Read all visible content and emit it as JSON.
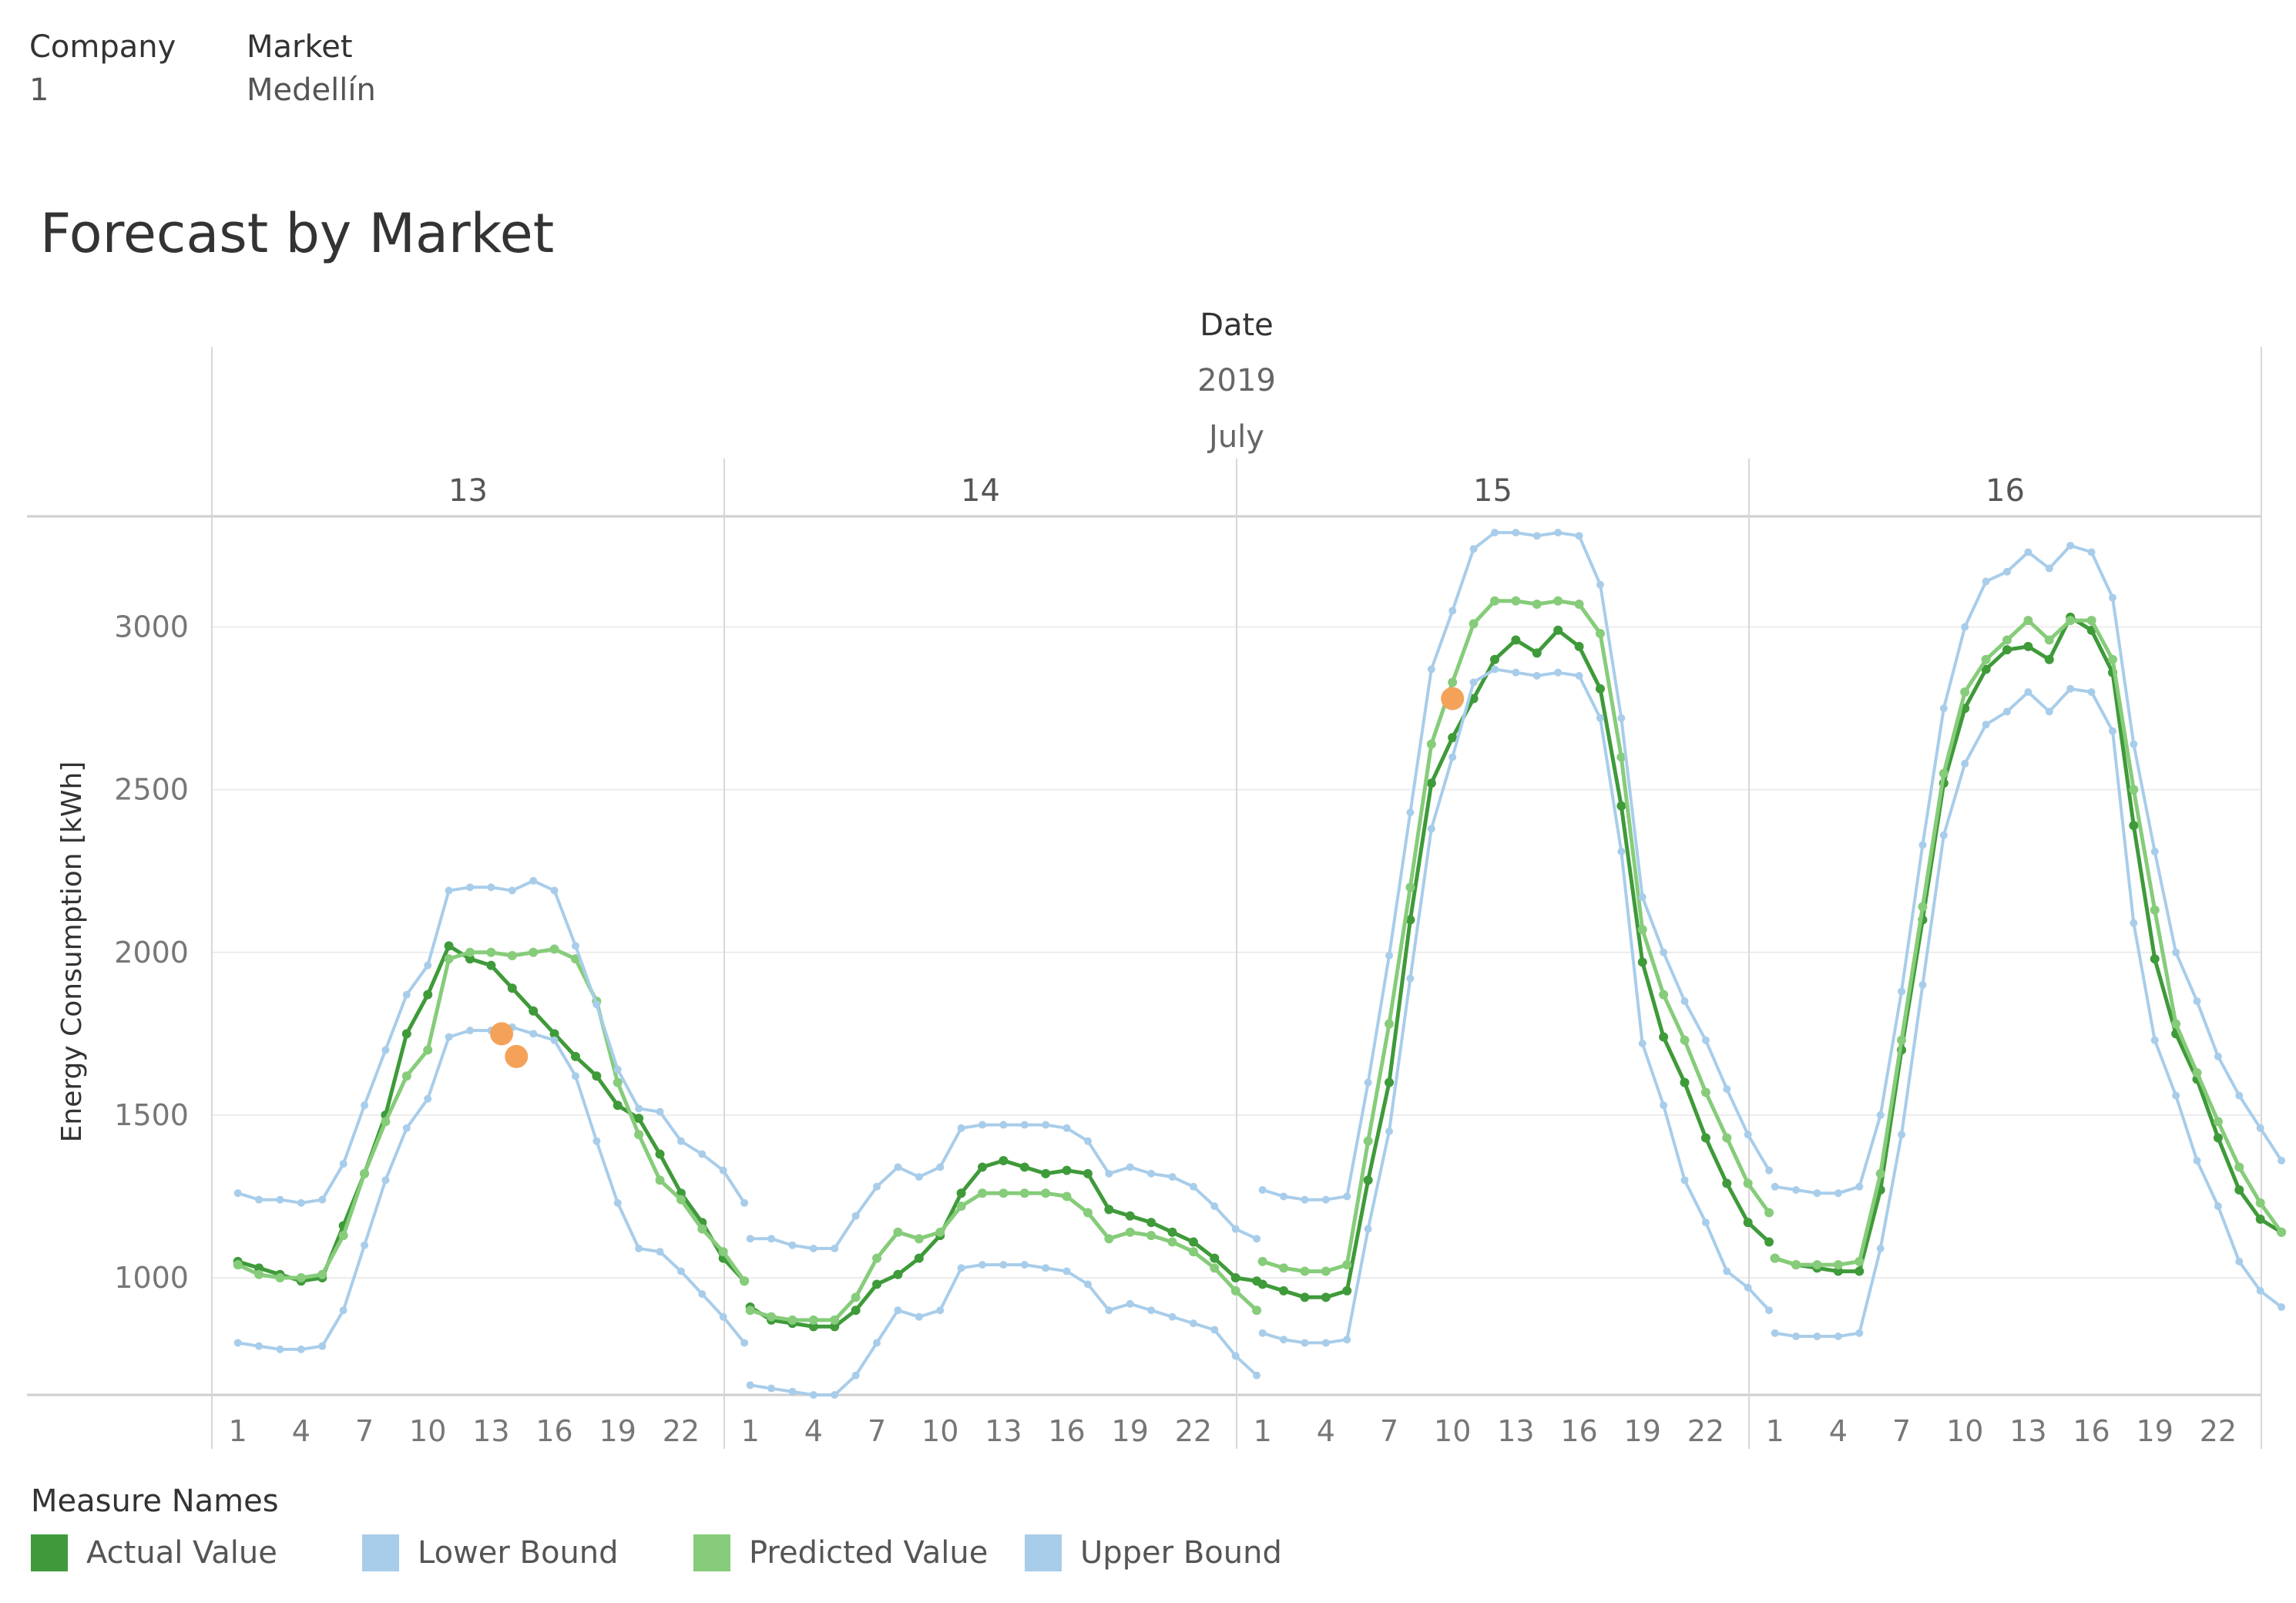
{
  "filters": [
    {
      "label": "Company",
      "value": "1"
    },
    {
      "label": "Market",
      "value": "Medellín"
    }
  ],
  "chart_title": "Forecast by Market",
  "header": {
    "title": "Date",
    "year": "2019",
    "month": "July"
  },
  "legend": {
    "title": "Measure Names",
    "items": [
      {
        "label": "Actual Value",
        "color": "#3f9a3a"
      },
      {
        "label": "Lower Bound",
        "color": "#a8cdea"
      },
      {
        "label": "Predicted Value",
        "color": "#86cc7a"
      },
      {
        "label": "Upper Bound",
        "color": "#a8cdea"
      }
    ]
  },
  "chart_data": {
    "type": "line",
    "title": "Forecast by Market",
    "ylabel": "Energy Consumption [kWh]",
    "xlabel": "",
    "ylim": [
      640,
      3340
    ],
    "yticks": [
      1000,
      1500,
      2000,
      2500,
      3000
    ],
    "xtick_labels": [
      "1",
      "4",
      "7",
      "10",
      "13",
      "16",
      "19",
      "22"
    ],
    "xtick_hours": [
      1,
      4,
      7,
      10,
      13,
      16,
      19,
      22
    ],
    "grid": true,
    "legend_position": "bottom",
    "panels": [
      {
        "day": "13",
        "series": [
          {
            "name": "Actual Value",
            "color": "#3f9a3a",
            "values": [
              1050,
              1030,
              1010,
              990,
              1000,
              1160,
              1320,
              1500,
              1750,
              1870,
              2020,
              1980,
              1960,
              1890,
              1820,
              1750,
              1680,
              1620,
              1530,
              1490,
              1380,
              1260,
              1170,
              1060,
              990
            ]
          },
          {
            "name": "Lower Bound",
            "color": "#a8cdea",
            "values": [
              800,
              790,
              780,
              780,
              790,
              900,
              1100,
              1300,
              1460,
              1550,
              1740,
              1760,
              1760,
              1770,
              1750,
              1730,
              1620,
              1420,
              1230,
              1090,
              1080,
              1020,
              950,
              880,
              800
            ]
          },
          {
            "name": "Predicted Value",
            "color": "#86cc7a",
            "values": [
              1040,
              1010,
              1000,
              1000,
              1010,
              1130,
              1320,
              1480,
              1620,
              1700,
              1980,
              2000,
              2000,
              1990,
              2000,
              2010,
              1980,
              1850,
              1600,
              1440,
              1300,
              1240,
              1150,
              1080,
              990
            ]
          },
          {
            "name": "Upper Bound",
            "color": "#a8cdea",
            "values": [
              1260,
              1240,
              1240,
              1230,
              1240,
              1350,
              1530,
              1700,
              1870,
              1960,
              2190,
              2200,
              2200,
              2190,
              2220,
              2190,
              2020,
              1840,
              1640,
              1520,
              1510,
              1420,
              1380,
              1330,
              1230
            ]
          }
        ],
        "anomalies": [
          {
            "hour": 13.5,
            "value": 1750
          },
          {
            "hour": 14.2,
            "value": 1680
          }
        ]
      },
      {
        "day": "14",
        "series": [
          {
            "name": "Actual Value",
            "color": "#3f9a3a",
            "values": [
              910,
              870,
              860,
              850,
              850,
              900,
              980,
              1010,
              1060,
              1130,
              1260,
              1340,
              1360,
              1340,
              1320,
              1330,
              1320,
              1210,
              1190,
              1170,
              1140,
              1110,
              1060,
              1000,
              990
            ]
          },
          {
            "name": "Lower Bound",
            "color": "#a8cdea",
            "values": [
              670,
              660,
              650,
              640,
              640,
              700,
              800,
              900,
              880,
              900,
              1030,
              1040,
              1040,
              1040,
              1030,
              1020,
              980,
              900,
              920,
              900,
              880,
              860,
              840,
              760,
              700
            ]
          },
          {
            "name": "Predicted Value",
            "color": "#86cc7a",
            "values": [
              900,
              880,
              870,
              870,
              870,
              940,
              1060,
              1140,
              1120,
              1140,
              1220,
              1260,
              1260,
              1260,
              1260,
              1250,
              1200,
              1120,
              1140,
              1130,
              1110,
              1080,
              1030,
              960,
              900
            ]
          },
          {
            "name": "Upper Bound",
            "color": "#a8cdea",
            "values": [
              1120,
              1120,
              1100,
              1090,
              1090,
              1190,
              1280,
              1340,
              1310,
              1340,
              1460,
              1470,
              1470,
              1470,
              1470,
              1460,
              1420,
              1320,
              1340,
              1320,
              1310,
              1280,
              1220,
              1150,
              1120
            ]
          }
        ],
        "anomalies": []
      },
      {
        "day": "15",
        "series": [
          {
            "name": "Actual Value",
            "color": "#3f9a3a",
            "values": [
              980,
              960,
              940,
              940,
              960,
              1300,
              1600,
              2100,
              2520,
              2660,
              2780,
              2900,
              2960,
              2920,
              2990,
              2940,
              2810,
              2450,
              1970,
              1740,
              1600,
              1430,
              1290,
              1170,
              1110
            ]
          },
          {
            "name": "Lower Bound",
            "color": "#a8cdea",
            "values": [
              830,
              810,
              800,
              800,
              810,
              1150,
              1450,
              1920,
              2380,
              2600,
              2830,
              2870,
              2860,
              2850,
              2860,
              2850,
              2720,
              2310,
              1720,
              1530,
              1300,
              1170,
              1020,
              970,
              900
            ]
          },
          {
            "name": "Predicted Value",
            "color": "#86cc7a",
            "values": [
              1050,
              1030,
              1020,
              1020,
              1040,
              1420,
              1780,
              2200,
              2640,
              2830,
              3010,
              3080,
              3080,
              3070,
              3080,
              3070,
              2980,
              2600,
              2070,
              1870,
              1730,
              1570,
              1430,
              1290,
              1200
            ]
          },
          {
            "name": "Upper Bound",
            "color": "#a8cdea",
            "values": [
              1270,
              1250,
              1240,
              1240,
              1250,
              1600,
              1990,
              2430,
              2870,
              3050,
              3240,
              3290,
              3290,
              3280,
              3290,
              3280,
              3130,
              2720,
              2170,
              2000,
              1850,
              1730,
              1580,
              1440,
              1330
            ]
          }
        ],
        "anomalies": [
          {
            "hour": 10,
            "value": 2780
          }
        ]
      },
      {
        "day": "16",
        "series": [
          {
            "name": "Actual Value",
            "color": "#3f9a3a",
            "values": [
              1060,
              1040,
              1030,
              1020,
              1020,
              1270,
              1700,
              2100,
              2520,
              2750,
              2870,
              2930,
              2940,
              2900,
              3030,
              2990,
              2860,
              2390,
              1980,
              1750,
              1610,
              1430,
              1270,
              1180,
              1140
            ]
          },
          {
            "name": "Lower Bound",
            "color": "#a8cdea",
            "values": [
              830,
              820,
              820,
              820,
              830,
              1090,
              1440,
              1900,
              2360,
              2580,
              2700,
              2740,
              2800,
              2740,
              2810,
              2800,
              2680,
              2090,
              1730,
              1560,
              1360,
              1220,
              1050,
              960,
              910
            ]
          },
          {
            "name": "Predicted Value",
            "color": "#86cc7a",
            "values": [
              1060,
              1040,
              1040,
              1040,
              1050,
              1320,
              1730,
              2140,
              2550,
              2800,
              2900,
              2960,
              3020,
              2960,
              3020,
              3020,
              2900,
              2500,
              2130,
              1780,
              1630,
              1480,
              1340,
              1230,
              1140
            ]
          },
          {
            "name": "Upper Bound",
            "color": "#a8cdea",
            "values": [
              1280,
              1270,
              1260,
              1260,
              1280,
              1500,
              1880,
              2330,
              2750,
              3000,
              3140,
              3170,
              3230,
              3180,
              3250,
              3230,
              3090,
              2640,
              2310,
              2000,
              1850,
              1680,
              1560,
              1460,
              1360
            ]
          }
        ],
        "anomalies": []
      }
    ]
  }
}
